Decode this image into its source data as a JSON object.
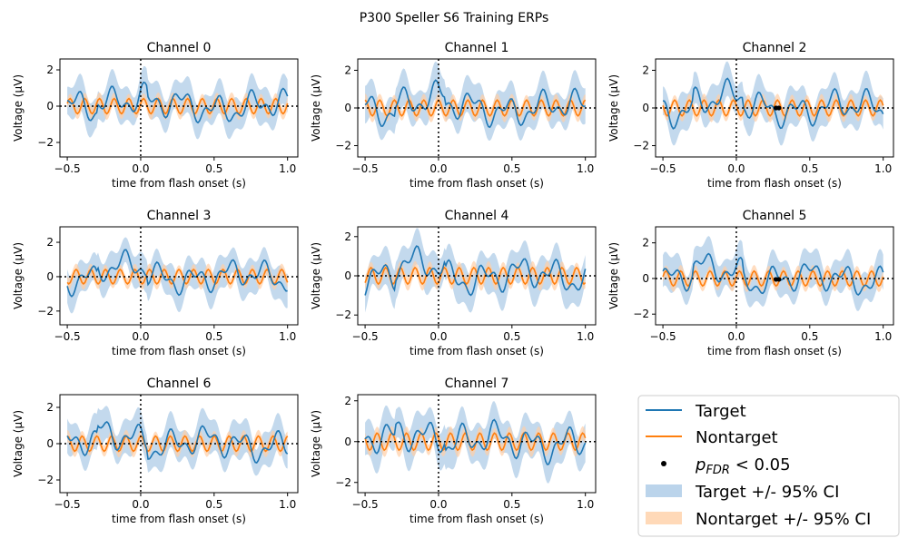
{
  "figure_title": "P300 Speller S6 Training ERPs",
  "colors": {
    "target": "#1f77b4",
    "nontarget": "#ff7f0e",
    "target_ci": "#aac9e6",
    "nontarget_ci": "#ffcfa6",
    "significant": "#000000"
  },
  "chart_data": [
    {
      "type": "line",
      "title": "Channel 0",
      "xlabel": "time from flash onset (s)",
      "ylabel": "Voltage (µV)",
      "xlim": [
        -0.55,
        1.07
      ],
      "ylim": [
        -2.8,
        2.6
      ],
      "xticks": [
        "-0.5",
        "0.0",
        "0.5",
        "1.0"
      ],
      "yticks": [
        "-2",
        "0",
        "2"
      ],
      "series": [
        {
          "name": "Target"
        },
        {
          "name": "Nontarget"
        }
      ],
      "significant_points": []
    },
    {
      "type": "line",
      "title": "Channel 1",
      "xlabel": "time from flash onset (s)",
      "ylabel": "Voltage (µV)",
      "xlim": [
        -0.55,
        1.07
      ],
      "ylim": [
        -2.6,
        2.6
      ],
      "xticks": [
        "-0.5",
        "0.0",
        "0.5",
        "1.0"
      ],
      "yticks": [
        "-2",
        "0",
        "2"
      ],
      "series": [
        {
          "name": "Target"
        },
        {
          "name": "Nontarget"
        }
      ],
      "significant_points": []
    },
    {
      "type": "line",
      "title": "Channel 2",
      "xlabel": "time from flash onset (s)",
      "ylabel": "Voltage (µV)",
      "xlim": [
        -0.55,
        1.07
      ],
      "ylim": [
        -2.6,
        2.6
      ],
      "xticks": [
        "-0.5",
        "0.0",
        "0.5",
        "1.0"
      ],
      "yticks": [
        "-2",
        "0",
        "2"
      ],
      "series": [
        {
          "name": "Target"
        },
        {
          "name": "Nontarget"
        }
      ],
      "significant_points": [
        {
          "x": 0.27,
          "y": 0.0
        },
        {
          "x": 0.29,
          "y": 0.0
        }
      ]
    },
    {
      "type": "line",
      "title": "Channel 3",
      "xlabel": "time from flash onset (s)",
      "ylabel": "Voltage (µV)",
      "xlim": [
        -0.55,
        1.07
      ],
      "ylim": [
        -2.8,
        2.9
      ],
      "xticks": [
        "-0.5",
        "0.0",
        "0.5",
        "1.0"
      ],
      "yticks": [
        "-2",
        "0",
        "2"
      ],
      "series": [
        {
          "name": "Target"
        },
        {
          "name": "Nontarget"
        }
      ],
      "significant_points": []
    },
    {
      "type": "line",
      "title": "Channel 4",
      "xlabel": "time from flash onset (s)",
      "ylabel": "Voltage (µV)",
      "xlim": [
        -0.55,
        1.07
      ],
      "ylim": [
        -2.5,
        2.5
      ],
      "xticks": [
        "-0.5",
        "0.0",
        "0.5",
        "1.0"
      ],
      "yticks": [
        "-2",
        "0",
        "2"
      ],
      "series": [
        {
          "name": "Target"
        },
        {
          "name": "Nontarget"
        }
      ],
      "significant_points": []
    },
    {
      "type": "line",
      "title": "Channel 5",
      "xlabel": "time from flash onset (s)",
      "ylabel": "Voltage (µV)",
      "xlim": [
        -0.55,
        1.07
      ],
      "ylim": [
        -2.6,
        2.9
      ],
      "xticks": [
        "-0.5",
        "0.0",
        "0.5",
        "1.0"
      ],
      "yticks": [
        "-2",
        "0",
        "2"
      ],
      "series": [
        {
          "name": "Target"
        },
        {
          "name": "Nontarget"
        }
      ],
      "significant_points": [
        {
          "x": 0.27,
          "y": -0.05
        },
        {
          "x": 0.29,
          "y": -0.05
        }
      ]
    },
    {
      "type": "line",
      "title": "Channel 6",
      "xlabel": "time from flash onset (s)",
      "ylabel": "Voltage (µV)",
      "xlim": [
        -0.55,
        1.07
      ],
      "ylim": [
        -2.7,
        2.7
      ],
      "xticks": [
        "-0.5",
        "0.0",
        "0.5",
        "1.0"
      ],
      "yticks": [
        "-2",
        "0",
        "2"
      ],
      "series": [
        {
          "name": "Target"
        },
        {
          "name": "Nontarget"
        }
      ],
      "significant_points": []
    },
    {
      "type": "line",
      "title": "Channel 7",
      "xlabel": "time from flash onset (s)",
      "ylabel": "Voltage (µV)",
      "xlim": [
        -0.55,
        1.07
      ],
      "ylim": [
        -2.5,
        2.3
      ],
      "xticks": [
        "-0.5",
        "0.0",
        "0.5",
        "1.0"
      ],
      "yticks": [
        "-2",
        "0",
        "2"
      ],
      "series": [
        {
          "name": "Target"
        },
        {
          "name": "Nontarget"
        }
      ],
      "significant_points": []
    }
  ],
  "legend": {
    "placement": "lower-right",
    "items": [
      {
        "kind": "line",
        "color": "target",
        "label": "Target"
      },
      {
        "kind": "line",
        "color": "nontarget",
        "label": "Nontarget"
      },
      {
        "kind": "dot",
        "color": "significant",
        "label_main": "p",
        "label_sub": "FDR",
        "label_rest": " < 0.05"
      },
      {
        "kind": "patch",
        "color": "target_ci",
        "label": "Target +/- 95% CI"
      },
      {
        "kind": "patch",
        "color": "nontarget_ci",
        "label": "Nontarget +/- 95% CI"
      }
    ]
  }
}
